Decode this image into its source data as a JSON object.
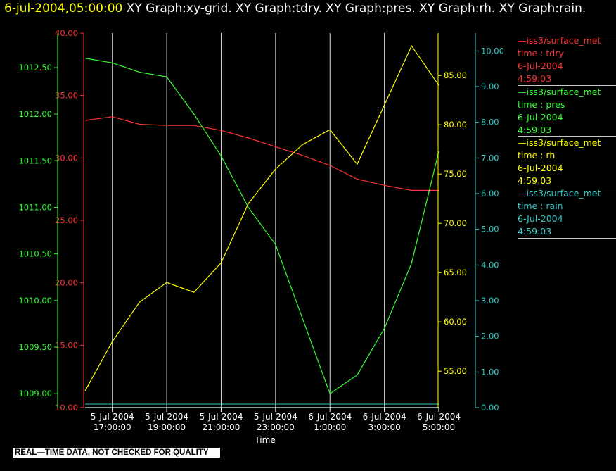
{
  "title": {
    "datetime": "6-jul-2004,05:00:00",
    "graphs": " XY Graph:xy-grid.  XY Graph:tdry.  XY Graph:pres.  XY Graph:rh.  XY Graph:rain."
  },
  "colors": {
    "tdry": "#ff3333",
    "pres": "#33ff33",
    "rh": "#ffff00",
    "rain": "#33cccc",
    "grid": "#d8d8d8",
    "text": "#ffffff"
  },
  "legend": [
    {
      "label": "—iss3/surface_met",
      "var": "time : tdry",
      "date": "6-Jul-2004",
      "time": "4:59:03",
      "color": "#ff3333"
    },
    {
      "label": "—iss3/surface_met",
      "var": "time : pres",
      "date": "6-Jul-2004",
      "time": "4:59:03",
      "color": "#33ff33"
    },
    {
      "label": "—iss3/surface_met",
      "var": "time : rh",
      "date": "6-Jul-2004",
      "time": "4:59:03",
      "color": "#ffff00"
    },
    {
      "label": "—iss3/surface_met",
      "var": "time : rain",
      "date": "6-Jul-2004",
      "time": "4:59:03",
      "color": "#33cccc"
    }
  ],
  "banner": "REAL—TIME DATA, NOT CHECKED FOR QUALITY",
  "chart_data": {
    "type": "line",
    "xlabel": "Time",
    "x_range": [
      "5-Jul-2004 16:00:00",
      "6-Jul-2004 05:00:00"
    ],
    "x_ticks": [
      {
        "date": "5-Jul-2004",
        "time": "17:00:00"
      },
      {
        "date": "5-Jul-2004",
        "time": "19:00:00"
      },
      {
        "date": "5-Jul-2004",
        "time": "21:00:00"
      },
      {
        "date": "5-Jul-2004",
        "time": "23:00:00"
      },
      {
        "date": "6-Jul-2004",
        "time": "1:00:00"
      },
      {
        "date": "6-Jul-2004",
        "time": "3:00:00"
      },
      {
        "date": "6-Jul-2004",
        "time": "5:00:00"
      }
    ],
    "grid": "vertical",
    "axes": {
      "tdry": {
        "range": [
          10,
          40
        ],
        "ticks": [
          "10.00",
          "15.00",
          "20.00",
          "25.00",
          "30.00",
          "35.00",
          "40.00"
        ]
      },
      "pres": {
        "range": [
          1008.85,
          1012.87
        ],
        "ticks": [
          "1009.00",
          "1009.50",
          "1010.00",
          "1010.50",
          "1011.00",
          "1011.50",
          "1012.00",
          "1012.50"
        ]
      },
      "rh": {
        "range": [
          51.3,
          89.3
        ],
        "ticks": [
          "55.00",
          "60.00",
          "65.00",
          "70.00",
          "75.00",
          "80.00",
          "85.00"
        ]
      },
      "rain": {
        "range": [
          0,
          10.5
        ],
        "ticks": [
          "0.00",
          "1.00",
          "2.00",
          "3.00",
          "4.00",
          "5.00",
          "6.00",
          "7.00",
          "8.00",
          "9.00",
          "10.00"
        ]
      }
    },
    "series": [
      {
        "var": "tdry",
        "x": [
          "5-Jul 16:00",
          "17:00",
          "18:00",
          "19:00",
          "20:00",
          "21:00",
          "22:00",
          "23:00",
          "6-Jul 0:00",
          "1:00",
          "2:00",
          "3:00",
          "4:00",
          "5:00"
        ],
        "values": [
          33.0,
          33.3,
          32.7,
          32.6,
          32.6,
          32.2,
          31.6,
          30.9,
          30.2,
          29.4,
          28.3,
          27.8,
          27.4,
          27.4
        ]
      },
      {
        "var": "pres",
        "x": [
          "5-Jul 16:00",
          "17:00",
          "18:00",
          "19:00",
          "20:00",
          "21:00",
          "22:00",
          "23:00",
          "6-Jul 0:00",
          "1:00",
          "2:00",
          "3:00",
          "4:00",
          "5:00"
        ],
        "values": [
          1012.6,
          1012.55,
          1012.45,
          1012.4,
          1012.0,
          1011.55,
          1011.0,
          1010.6,
          1009.8,
          1009.0,
          1009.2,
          1009.7,
          1010.4,
          1011.6
        ]
      },
      {
        "var": "rh",
        "x": [
          "5-Jul 16:00",
          "17:00",
          "18:00",
          "19:00",
          "20:00",
          "21:00",
          "22:00",
          "23:00",
          "6-Jul 0:00",
          "1:00",
          "2:00",
          "3:00",
          "4:00",
          "5:00"
        ],
        "values": [
          53.0,
          58.0,
          62.0,
          64.0,
          63.0,
          66.0,
          72.0,
          75.5,
          78.0,
          79.5,
          76.0,
          82.0,
          88.0,
          84.0
        ]
      },
      {
        "var": "rain",
        "x": [
          "5-Jul 16:00",
          "5:00"
        ],
        "values": [
          0.0,
          0.0
        ]
      }
    ]
  }
}
